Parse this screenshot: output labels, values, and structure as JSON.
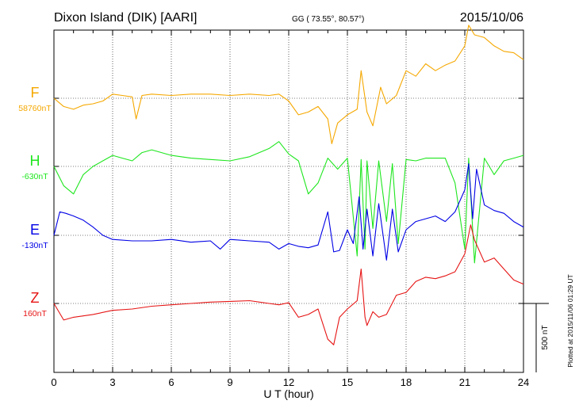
{
  "header": {
    "station": "Dixon Island (DIK)  [AARI]",
    "coords": "GG ( 73.55°,  80.57°)",
    "date": "2015/10/06"
  },
  "side_note": "Plotted at 2015/11/06 01:29 UT",
  "scale_label": "500 nT",
  "chart_data": {
    "type": "line",
    "title": "Dixon Island (DIK)  [AARI]",
    "xlabel": "U T (hour)",
    "ylabel": "",
    "xlim": [
      0,
      24
    ],
    "xticks": [
      0,
      3,
      6,
      9,
      12,
      15,
      18,
      21,
      24
    ],
    "grid": true,
    "scale_bar_nT": 500,
    "series": [
      {
        "name": "F",
        "baseline_label": "58760nT",
        "baseline_nT": 58760,
        "color": "#f5a800",
        "x": [
          0,
          0.5,
          1,
          1.5,
          2,
          2.5,
          3,
          3.5,
          4,
          4.2,
          4.5,
          5,
          6,
          7,
          8,
          9,
          10,
          11,
          11.5,
          12,
          12.5,
          13,
          13.5,
          14,
          14.2,
          14.5,
          15,
          15.5,
          15.7,
          16,
          16.3,
          16.7,
          17,
          17.5,
          18,
          18.5,
          19,
          19.5,
          20,
          20.5,
          21,
          21.2,
          21.5,
          22,
          22.5,
          23,
          23.5,
          24
        ],
        "values": [
          0,
          -60,
          -80,
          -50,
          -40,
          -20,
          30,
          20,
          10,
          -150,
          20,
          30,
          20,
          30,
          30,
          20,
          30,
          20,
          30,
          -20,
          -120,
          -100,
          -60,
          -150,
          -330,
          -180,
          -120,
          -80,
          200,
          -100,
          -200,
          80,
          -40,
          20,
          200,
          160,
          250,
          200,
          240,
          270,
          380,
          530,
          460,
          440,
          380,
          340,
          330,
          280
        ]
      },
      {
        "name": "H",
        "baseline_label": "-630nT",
        "baseline_nT": -630,
        "color": "#1ee61e",
        "x": [
          0,
          0.5,
          1,
          1.5,
          2,
          2.5,
          3,
          3.5,
          4,
          4.5,
          5,
          6,
          7,
          8,
          9,
          10,
          11,
          11.5,
          12,
          12.5,
          13,
          13.5,
          14,
          14.5,
          15,
          15.5,
          15.7,
          15.9,
          16,
          16.3,
          16.6,
          17,
          17.3,
          17.6,
          18,
          18.5,
          19,
          20,
          20.5,
          21,
          21.2,
          21.5,
          22,
          22.5,
          23,
          23.5,
          24
        ],
        "values": [
          0,
          -140,
          -200,
          -60,
          0,
          40,
          80,
          60,
          40,
          100,
          120,
          80,
          60,
          50,
          40,
          70,
          130,
          180,
          90,
          40,
          -200,
          -120,
          60,
          -20,
          60,
          -650,
          50,
          -600,
          40,
          -450,
          40,
          -400,
          20,
          -560,
          50,
          40,
          60,
          60,
          -120,
          -600,
          60,
          -700,
          60,
          -60,
          40,
          60,
          80
        ]
      },
      {
        "name": "E",
        "baseline_label": "-130nT",
        "baseline_nT": -130,
        "color": "#0000e6",
        "x": [
          0,
          0.3,
          0.6,
          1,
          1.5,
          2,
          2.5,
          3,
          4,
          5,
          6,
          7,
          8,
          8.5,
          9,
          10,
          11,
          11.5,
          12,
          12.5,
          13,
          13.5,
          14,
          14.3,
          14.6,
          15,
          15.3,
          15.6,
          15.8,
          16,
          16.3,
          16.6,
          17,
          17.3,
          17.6,
          18,
          18.5,
          19,
          19.5,
          20,
          20.5,
          21,
          21.2,
          21.4,
          21.6,
          22,
          22.5,
          23,
          23.5,
          24
        ],
        "values": [
          0,
          170,
          160,
          140,
          110,
          60,
          0,
          -30,
          -40,
          -40,
          -30,
          -50,
          -40,
          -100,
          -30,
          -40,
          -50,
          -100,
          -60,
          -80,
          -90,
          -70,
          170,
          -120,
          -110,
          40,
          -60,
          280,
          -100,
          190,
          -150,
          230,
          -180,
          190,
          -120,
          40,
          100,
          120,
          140,
          100,
          170,
          330,
          520,
          120,
          480,
          220,
          180,
          160,
          100,
          60
        ]
      },
      {
        "name": "Z",
        "baseline_label": "160nT",
        "baseline_nT": 160,
        "color": "#e61414",
        "x": [
          0,
          0.5,
          1,
          1.5,
          2,
          3,
          4,
          5,
          6,
          7,
          8,
          9,
          10,
          11,
          11.5,
          12,
          12.5,
          13,
          13.5,
          14,
          14.3,
          14.6,
          15,
          15.5,
          15.7,
          15.9,
          16,
          16.3,
          16.6,
          17,
          17.5,
          18,
          18.5,
          19,
          19.5,
          20,
          20.5,
          21,
          21.3,
          21.5,
          22,
          22.5,
          23,
          23.5,
          24
        ],
        "values": [
          0,
          -120,
          -100,
          -90,
          -80,
          -50,
          -40,
          -20,
          -10,
          0,
          10,
          15,
          20,
          0,
          -10,
          5,
          -100,
          -80,
          -40,
          -260,
          -300,
          -100,
          -40,
          20,
          250,
          -100,
          -160,
          -60,
          -100,
          -80,
          60,
          80,
          160,
          190,
          180,
          200,
          230,
          360,
          570,
          460,
          300,
          330,
          250,
          170,
          140
        ]
      }
    ]
  }
}
